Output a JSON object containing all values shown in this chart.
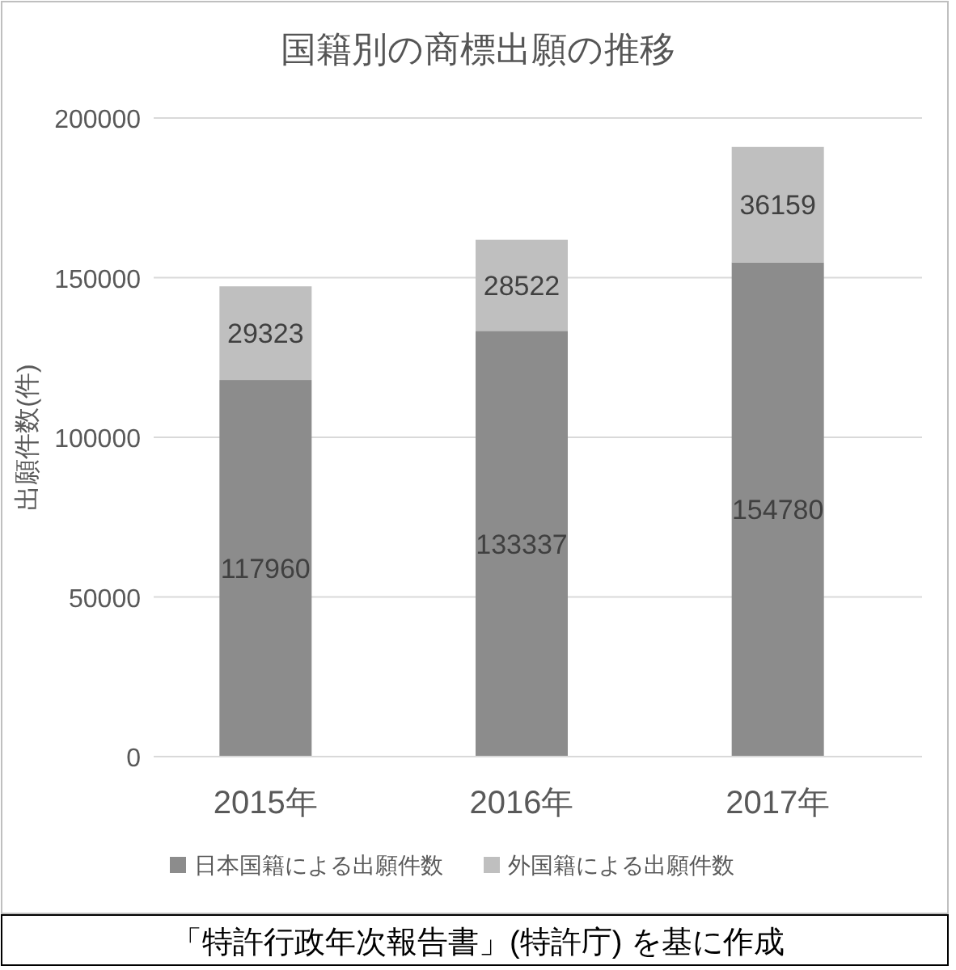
{
  "chart_data": {
    "type": "bar",
    "stacked": true,
    "title": "国籍別の商標出願の推移",
    "ylabel": "出願件数(件)",
    "categories": [
      "2015年",
      "2016年",
      "2017年"
    ],
    "series": [
      {
        "name": "日本国籍による出願件数",
        "color": "#8c8c8c",
        "values": [
          117960,
          133337,
          154780
        ]
      },
      {
        "name": "外国籍による出願件数",
        "color": "#bfbfbf",
        "values": [
          29323,
          28522,
          36159
        ]
      }
    ],
    "ylim": [
      0,
      200000
    ],
    "yticks": [
      0,
      50000,
      100000,
      150000,
      200000
    ],
    "grid": "y",
    "legend": "bottom",
    "data_labels": true,
    "annotations": [
      "「特許行政年次報告書」(特許庁) を基に作成"
    ]
  }
}
